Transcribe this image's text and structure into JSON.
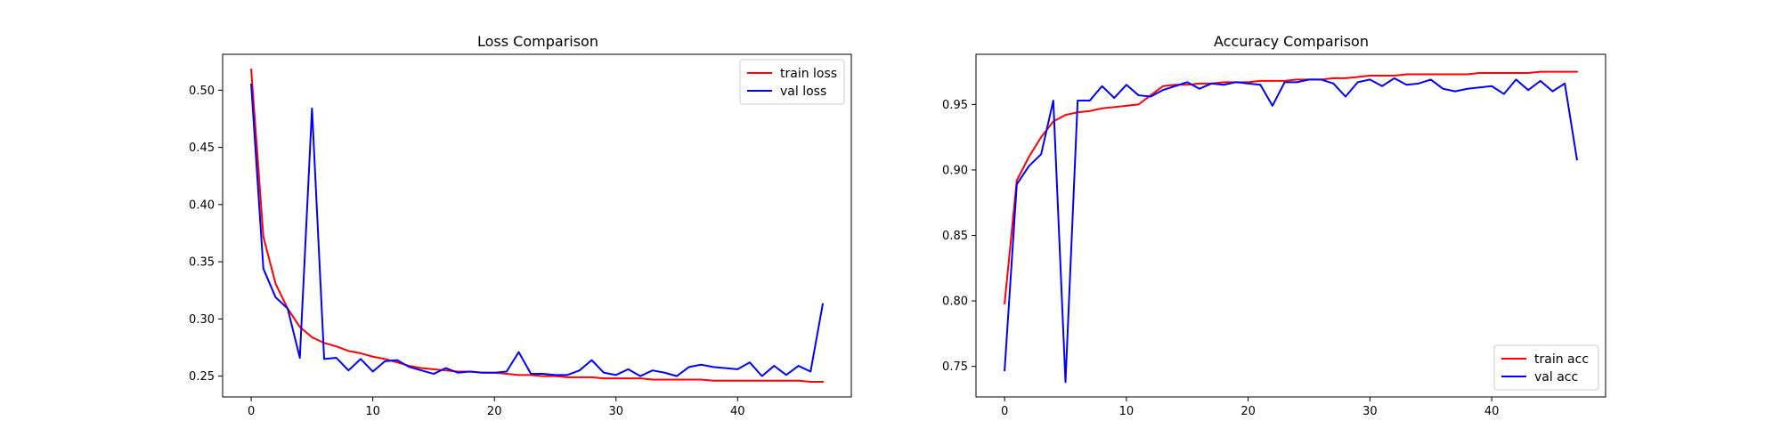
{
  "chart_data": [
    {
      "type": "line",
      "title": "Loss Comparison",
      "xlabel": "",
      "ylabel": "",
      "xlim": [
        -2.35,
        49.35
      ],
      "ylim": [
        0.2318,
        0.5314
      ],
      "xticks": [
        0,
        10,
        20,
        30,
        40
      ],
      "yticks": [
        0.25,
        0.3,
        0.35,
        0.4,
        0.45,
        0.5
      ],
      "xtick_labels": [
        "0",
        "10",
        "20",
        "30",
        "40"
      ],
      "ytick_labels": [
        "0.25",
        "0.30",
        "0.35",
        "0.40",
        "0.45",
        "0.50"
      ],
      "grid": false,
      "legend_position": "top-right",
      "x": [
        0,
        1,
        2,
        3,
        4,
        5,
        6,
        7,
        8,
        9,
        10,
        11,
        12,
        13,
        14,
        15,
        16,
        17,
        18,
        19,
        20,
        21,
        22,
        23,
        24,
        25,
        26,
        27,
        28,
        29,
        30,
        31,
        32,
        33,
        34,
        35,
        36,
        37,
        38,
        39,
        40,
        41,
        42,
        43,
        44,
        45,
        46,
        47
      ],
      "series": [
        {
          "name": "train loss",
          "color": "#ff0000",
          "values": [
            0.518,
            0.372,
            0.331,
            0.309,
            0.293,
            0.284,
            0.279,
            0.276,
            0.272,
            0.27,
            0.267,
            0.265,
            0.262,
            0.259,
            0.257,
            0.256,
            0.255,
            0.254,
            0.254,
            0.253,
            0.253,
            0.252,
            0.251,
            0.251,
            0.25,
            0.25,
            0.249,
            0.249,
            0.249,
            0.248,
            0.248,
            0.248,
            0.248,
            0.247,
            0.247,
            0.247,
            0.247,
            0.247,
            0.246,
            0.246,
            0.246,
            0.246,
            0.246,
            0.246,
            0.246,
            0.246,
            0.245,
            0.245
          ]
        },
        {
          "name": "val loss",
          "color": "#0000ff",
          "values": [
            0.505,
            0.344,
            0.319,
            0.309,
            0.266,
            0.484,
            0.265,
            0.266,
            0.255,
            0.265,
            0.254,
            0.263,
            0.264,
            0.258,
            0.255,
            0.252,
            0.257,
            0.253,
            0.254,
            0.253,
            0.253,
            0.254,
            0.271,
            0.252,
            0.252,
            0.251,
            0.251,
            0.255,
            0.264,
            0.253,
            0.251,
            0.256,
            0.25,
            0.255,
            0.253,
            0.25,
            0.258,
            0.26,
            0.258,
            0.257,
            0.256,
            0.262,
            0.25,
            0.259,
            0.251,
            0.259,
            0.254,
            0.313
          ]
        }
      ]
    },
    {
      "type": "line",
      "title": "Accuracy Comparison",
      "xlabel": "",
      "ylabel": "",
      "xlim": [
        -2.35,
        49.35
      ],
      "ylim": [
        0.7267,
        0.9883
      ],
      "xticks": [
        0,
        10,
        20,
        30,
        40
      ],
      "yticks": [
        0.75,
        0.8,
        0.85,
        0.9,
        0.95
      ],
      "xtick_labels": [
        "0",
        "10",
        "20",
        "30",
        "40"
      ],
      "ytick_labels": [
        "0.75",
        "0.80",
        "0.85",
        "0.90",
        "0.95"
      ],
      "grid": false,
      "legend_position": "bottom-right",
      "x": [
        0,
        1,
        2,
        3,
        4,
        5,
        6,
        7,
        8,
        9,
        10,
        11,
        12,
        13,
        14,
        15,
        16,
        17,
        18,
        19,
        20,
        21,
        22,
        23,
        24,
        25,
        26,
        27,
        28,
        29,
        30,
        31,
        32,
        33,
        34,
        35,
        36,
        37,
        38,
        39,
        40,
        41,
        42,
        43,
        44,
        45,
        46,
        47
      ],
      "series": [
        {
          "name": "train acc",
          "color": "#ff0000",
          "values": [
            0.798,
            0.892,
            0.91,
            0.925,
            0.937,
            0.942,
            0.944,
            0.945,
            0.947,
            0.948,
            0.949,
            0.95,
            0.957,
            0.964,
            0.965,
            0.965,
            0.966,
            0.966,
            0.967,
            0.967,
            0.967,
            0.968,
            0.968,
            0.968,
            0.969,
            0.969,
            0.969,
            0.97,
            0.97,
            0.971,
            0.972,
            0.972,
            0.972,
            0.973,
            0.973,
            0.973,
            0.973,
            0.973,
            0.973,
            0.974,
            0.974,
            0.974,
            0.974,
            0.974,
            0.975,
            0.975,
            0.975,
            0.975
          ]
        },
        {
          "name": "val acc",
          "color": "#0000ff",
          "values": [
            0.747,
            0.889,
            0.903,
            0.912,
            0.953,
            0.738,
            0.953,
            0.953,
            0.964,
            0.955,
            0.965,
            0.957,
            0.956,
            0.961,
            0.964,
            0.967,
            0.962,
            0.966,
            0.965,
            0.967,
            0.966,
            0.965,
            0.949,
            0.967,
            0.967,
            0.969,
            0.969,
            0.966,
            0.956,
            0.967,
            0.969,
            0.964,
            0.97,
            0.965,
            0.966,
            0.969,
            0.962,
            0.96,
            0.962,
            0.963,
            0.964,
            0.958,
            0.969,
            0.961,
            0.968,
            0.96,
            0.966,
            0.908
          ]
        }
      ]
    }
  ]
}
